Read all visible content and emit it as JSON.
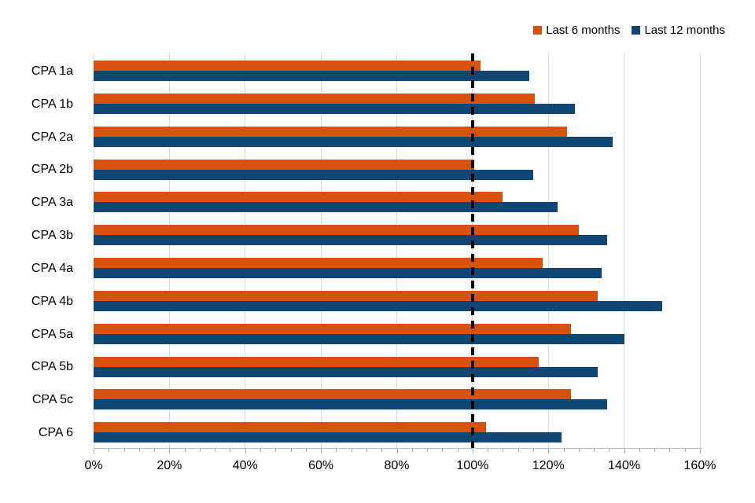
{
  "chart_data": {
    "type": "bar",
    "orientation": "horizontal",
    "title": "",
    "categories": [
      "CPA 1a",
      "CPA 1b",
      "CPA 2a",
      "CPA 2b",
      "CPA 3a",
      "CPA 3b",
      "CPA 4a",
      "CPA 4b",
      "CPA 5a",
      "CPA 5b",
      "CPA 5c",
      "CPA 6"
    ],
    "series": [
      {
        "name": "Last 6 months",
        "color": "#D8510D",
        "values": [
          102,
          116.5,
          125,
          100.5,
          108,
          128,
          118.5,
          133,
          126,
          117.5,
          126,
          103.5
        ]
      },
      {
        "name": "Last 12 months",
        "color": "#104674",
        "values": [
          115,
          127,
          137,
          116,
          122.5,
          135.5,
          134,
          150,
          140,
          133,
          135.5,
          123.5
        ]
      }
    ],
    "xlabel": "",
    "ylabel": "",
    "xlim": [
      0,
      160
    ],
    "x_tick_labels": [
      "0%",
      "20%",
      "40%",
      "60%",
      "80%",
      "100%",
      "120%",
      "140%",
      "160%"
    ],
    "x_minor_tick_step_pct": 4,
    "reference_line": {
      "x": 100,
      "color": "#000000",
      "style": "dashed"
    },
    "legend_position": "top-right",
    "gridlines": "vertical",
    "colors": {
      "gridline": "#D9D9D9",
      "axis": "#BFBFBF",
      "tick": "#A6A6A6",
      "text": "#000000",
      "background": "#FFFFFF"
    }
  }
}
